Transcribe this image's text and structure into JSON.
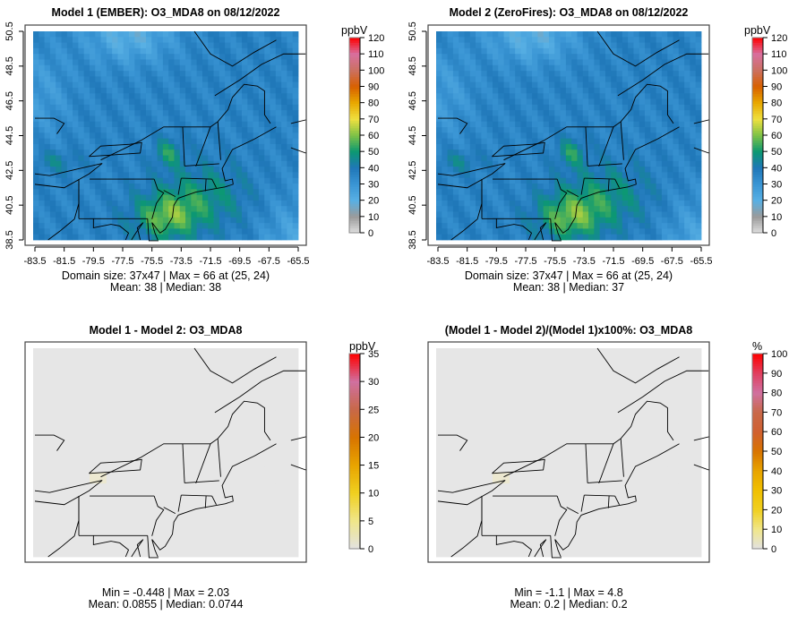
{
  "panels": [
    {
      "title": "Model 1 (EMBER): O3_MDA8 on 08/12/2022",
      "stat1": "Domain size: 37x47 | Max = 66 at (25, 24)",
      "stat2": "Mean: 38 |  Median: 38",
      "unit": "ppbV",
      "scale_ticks": [
        "0",
        "10",
        "20",
        "30",
        "40",
        "50",
        "60",
        "70",
        "80",
        "90",
        "100",
        "110",
        "120"
      ],
      "kind": "conc"
    },
    {
      "title": "Model 2 (ZeroFires): O3_MDA8 on 08/12/2022",
      "stat1": "Domain size: 37x47 | Max = 66 at (25, 24)",
      "stat2": "Mean: 38 |  Median: 37",
      "unit": "ppbV",
      "scale_ticks": [
        "0",
        "10",
        "20",
        "30",
        "40",
        "50",
        "60",
        "70",
        "80",
        "90",
        "100",
        "110",
        "120"
      ],
      "kind": "conc"
    },
    {
      "title": "Model 1 - Model 2: O3_MDA8",
      "stat1": "Min = -0.448 | Max = 2.03",
      "stat2": "Mean: 0.0855 |  Median: 0.0744",
      "unit": "ppbV",
      "scale_ticks": [
        "0",
        "5",
        "10",
        "15",
        "20",
        "25",
        "30",
        "35"
      ],
      "kind": "diff"
    },
    {
      "title": "(Model 1 - Model 2)/(Model 1)x100%: O3_MDA8",
      "stat1": "Min = -1.1 | Max = 4.8",
      "stat2": "Mean: 0.2 |  Median: 0.2",
      "unit": "%",
      "scale_ticks": [
        "0",
        "10",
        "20",
        "30",
        "40",
        "50",
        "60",
        "70",
        "80",
        "90",
        "100"
      ],
      "kind": "diff"
    }
  ],
  "x_ticks": [
    "-83.5",
    "-81.5",
    "-79.5",
    "-77.5",
    "-75.5",
    "-73.5",
    "-71.5",
    "-69.5",
    "-67.5",
    "-65.5"
  ],
  "y_ticks": [
    "38.5",
    "40.5",
    "42.5",
    "44.5",
    "46.5",
    "48.5",
    "50.5"
  ],
  "colors": {
    "conc_scale": [
      "#e0e0e0",
      "#9a9a9a",
      "#58b0e4",
      "#3a95d4",
      "#1f77b8",
      "#0c9872",
      "#7ec246",
      "#efe040",
      "#e8a800",
      "#d86000",
      "#cc7060",
      "#d870a0",
      "#ff0000"
    ],
    "diff_scale": [
      "#e2e2e2",
      "#f0e68a",
      "#f0d020",
      "#e8a400",
      "#d87400",
      "#c86848",
      "#d070a0",
      "#ff0000"
    ],
    "background": "#e6e6e6"
  }
}
